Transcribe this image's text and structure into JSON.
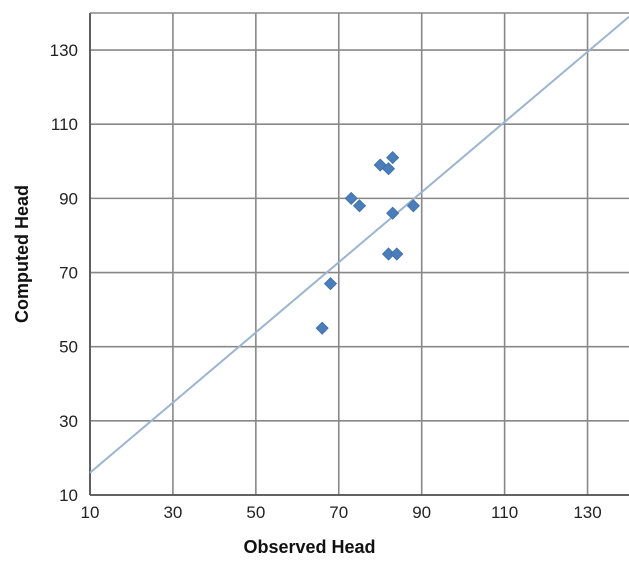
{
  "chart_data": {
    "type": "scatter",
    "title": "",
    "xlabel": "Observed Head",
    "ylabel": "Computed Head",
    "xlim": [
      10,
      140
    ],
    "ylim": [
      10,
      140
    ],
    "x_ticks": [
      10,
      30,
      50,
      70,
      90,
      110,
      130
    ],
    "y_ticks": [
      10,
      30,
      50,
      70,
      90,
      110,
      130
    ],
    "grid": true,
    "legend": "none",
    "series": [
      {
        "marker": "diamond",
        "color": "#4a7ebb",
        "points": [
          {
            "x": 66,
            "y": 55
          },
          {
            "x": 68,
            "y": 67
          },
          {
            "x": 73,
            "y": 90
          },
          {
            "x": 75,
            "y": 88
          },
          {
            "x": 80,
            "y": 99
          },
          {
            "x": 82,
            "y": 98
          },
          {
            "x": 83,
            "y": 101
          },
          {
            "x": 83,
            "y": 86
          },
          {
            "x": 82,
            "y": 75
          },
          {
            "x": 84,
            "y": 75
          },
          {
            "x": 88,
            "y": 88
          }
        ]
      }
    ],
    "reference_line": {
      "color": "#9bb5d1",
      "from": {
        "x": 10,
        "y": 16
      },
      "to": {
        "x": 140,
        "y": 139
      }
    }
  }
}
